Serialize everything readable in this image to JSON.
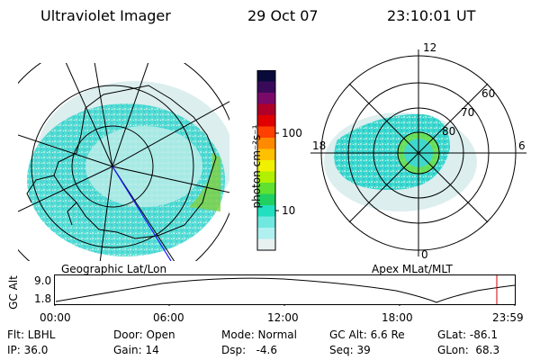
{
  "header": {
    "instrument": "Ultraviolet Imager",
    "date": "29 Oct 07",
    "time": "23:10:01 UT"
  },
  "panels": {
    "left_label": "Geographic Lat/Lon",
    "right_label": "Apex MLat/MLT"
  },
  "colorbar": {
    "unit_label": "photon cm⁻²s⁻¹",
    "ticks": [
      "100",
      "10"
    ],
    "colors": [
      "#0a0a3a",
      "#3a0a5a",
      "#7a0a6a",
      "#b0002a",
      "#e00000",
      "#ff4000",
      "#ff8a00",
      "#ffc000",
      "#f0f000",
      "#b0f000",
      "#60e030",
      "#20d060",
      "#20e0c0",
      "#70e8e0",
      "#b0f0f0",
      "#e8f0f0"
    ]
  },
  "polar_right": {
    "mlt_labels": [
      "12",
      "18",
      "6",
      "0"
    ],
    "lat_labels": [
      "60",
      "70",
      "80"
    ]
  },
  "altitude_strip": {
    "ylabel": "GC Alt",
    "y_top": "9.0",
    "y_bottom": "1.8",
    "time_ticks": [
      "00:00",
      "06:00",
      "12:00",
      "18:00",
      "23:59"
    ],
    "current_marker_color": "#d00000"
  },
  "info": {
    "flt": "Flt: LBHL",
    "ip": "IP: 36.0",
    "door": "Door: Open",
    "gain": "Gain: 14",
    "mode": "Mode: Normal",
    "dsp": "Dsp:   -4.6",
    "gcalt": "GC Alt: 6.6 Re",
    "seq": "Seq: 39",
    "glat": "GLat: -86.1",
    "glon": "GLon:  68.3"
  }
}
